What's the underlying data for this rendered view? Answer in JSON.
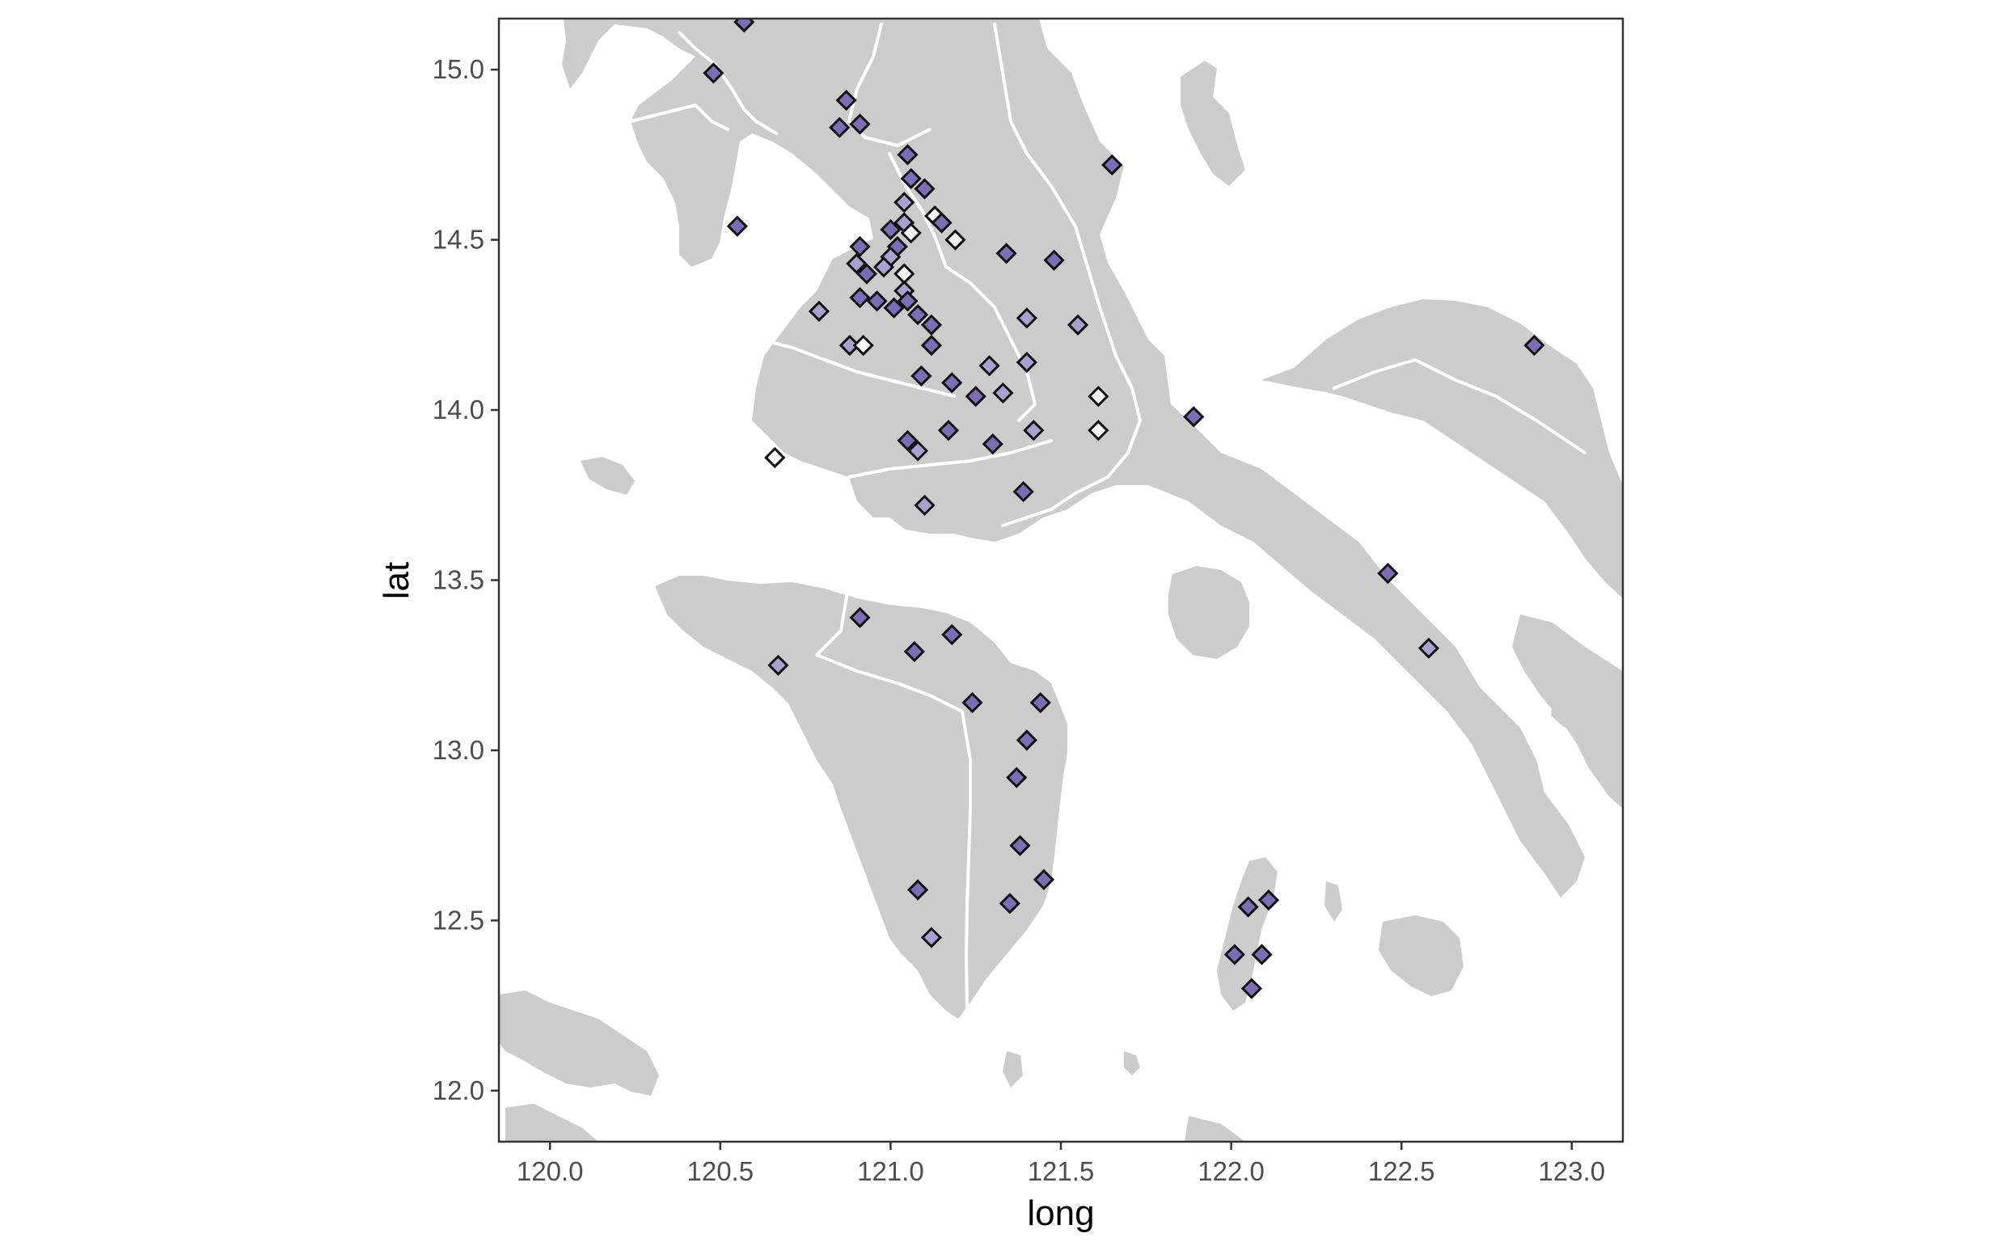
{
  "chart_data": {
    "type": "scatter",
    "subtype": "map",
    "title": "",
    "xlabel": "long",
    "ylabel": "lat",
    "xlim": [
      119.85,
      123.15
    ],
    "ylim": [
      11.85,
      15.15
    ],
    "x_ticks": [
      120.0,
      120.5,
      121.0,
      121.5,
      122.0,
      122.5,
      123.0
    ],
    "x_tick_labels": [
      "120.0",
      "120.5",
      "121.0",
      "121.5",
      "122.0",
      "122.5",
      "123.0"
    ],
    "y_ticks": [
      12.0,
      12.5,
      13.0,
      13.5,
      14.0,
      14.5,
      15.0
    ],
    "y_tick_labels": [
      "12.0",
      "12.5",
      "13.0",
      "13.5",
      "14.0",
      "14.5",
      "15.0"
    ],
    "grid": false,
    "legend": "none",
    "marker": "diamond",
    "colors": {
      "land": "#cccccc",
      "border": "#ffffff",
      "panel_border": "#333333",
      "marker_outline": "#111111",
      "level_high": "#7b6db6",
      "level_mid": "#a9a1d2",
      "level_low": "#f7f7f7"
    },
    "points": [
      {
        "long": 120.57,
        "lat": 15.14,
        "level": "high"
      },
      {
        "long": 120.48,
        "lat": 14.99,
        "level": "high"
      },
      {
        "long": 120.87,
        "lat": 14.91,
        "level": "high"
      },
      {
        "long": 120.85,
        "lat": 14.83,
        "level": "high"
      },
      {
        "long": 120.91,
        "lat": 14.84,
        "level": "high"
      },
      {
        "long": 121.05,
        "lat": 14.75,
        "level": "high"
      },
      {
        "long": 121.65,
        "lat": 14.72,
        "level": "high"
      },
      {
        "long": 121.06,
        "lat": 14.68,
        "level": "high"
      },
      {
        "long": 121.1,
        "lat": 14.65,
        "level": "high"
      },
      {
        "long": 121.04,
        "lat": 14.61,
        "level": "mid"
      },
      {
        "long": 121.13,
        "lat": 14.57,
        "level": "low"
      },
      {
        "long": 121.15,
        "lat": 14.55,
        "level": "high"
      },
      {
        "long": 120.55,
        "lat": 14.54,
        "level": "high"
      },
      {
        "long": 121.0,
        "lat": 14.53,
        "level": "high"
      },
      {
        "long": 121.04,
        "lat": 14.55,
        "level": "mid"
      },
      {
        "long": 121.06,
        "lat": 14.52,
        "level": "low"
      },
      {
        "long": 121.19,
        "lat": 14.5,
        "level": "low"
      },
      {
        "long": 120.91,
        "lat": 14.48,
        "level": "high"
      },
      {
        "long": 121.02,
        "lat": 14.48,
        "level": "high"
      },
      {
        "long": 121.34,
        "lat": 14.46,
        "level": "high"
      },
      {
        "long": 121.48,
        "lat": 14.44,
        "level": "high"
      },
      {
        "long": 120.9,
        "lat": 14.43,
        "level": "mid"
      },
      {
        "long": 121.0,
        "lat": 14.45,
        "level": "mid"
      },
      {
        "long": 120.93,
        "lat": 14.4,
        "level": "high"
      },
      {
        "long": 120.98,
        "lat": 14.42,
        "level": "mid"
      },
      {
        "long": 121.04,
        "lat": 14.4,
        "level": "low"
      },
      {
        "long": 120.91,
        "lat": 14.33,
        "level": "high"
      },
      {
        "long": 120.96,
        "lat": 14.32,
        "level": "high"
      },
      {
        "long": 121.01,
        "lat": 14.3,
        "level": "high"
      },
      {
        "long": 121.04,
        "lat": 14.35,
        "level": "mid"
      },
      {
        "long": 121.05,
        "lat": 14.32,
        "level": "high"
      },
      {
        "long": 120.79,
        "lat": 14.29,
        "level": "mid"
      },
      {
        "long": 121.08,
        "lat": 14.28,
        "level": "high"
      },
      {
        "long": 121.12,
        "lat": 14.25,
        "level": "high"
      },
      {
        "long": 121.4,
        "lat": 14.27,
        "level": "mid"
      },
      {
        "long": 121.55,
        "lat": 14.25,
        "level": "mid"
      },
      {
        "long": 120.88,
        "lat": 14.19,
        "level": "mid"
      },
      {
        "long": 120.92,
        "lat": 14.19,
        "level": "low"
      },
      {
        "long": 121.12,
        "lat": 14.19,
        "level": "high"
      },
      {
        "long": 121.29,
        "lat": 14.13,
        "level": "mid"
      },
      {
        "long": 121.4,
        "lat": 14.14,
        "level": "mid"
      },
      {
        "long": 121.09,
        "lat": 14.1,
        "level": "high"
      },
      {
        "long": 121.18,
        "lat": 14.08,
        "level": "high"
      },
      {
        "long": 121.25,
        "lat": 14.04,
        "level": "high"
      },
      {
        "long": 121.33,
        "lat": 14.05,
        "level": "mid"
      },
      {
        "long": 121.61,
        "lat": 14.04,
        "level": "low"
      },
      {
        "long": 121.89,
        "lat": 13.98,
        "level": "high"
      },
      {
        "long": 121.17,
        "lat": 13.94,
        "level": "high"
      },
      {
        "long": 121.42,
        "lat": 13.94,
        "level": "mid"
      },
      {
        "long": 121.61,
        "lat": 13.94,
        "level": "low"
      },
      {
        "long": 121.05,
        "lat": 13.91,
        "level": "high"
      },
      {
        "long": 121.08,
        "lat": 13.88,
        "level": "mid"
      },
      {
        "long": 121.3,
        "lat": 13.9,
        "level": "high"
      },
      {
        "long": 120.66,
        "lat": 13.86,
        "level": "low"
      },
      {
        "long": 121.39,
        "lat": 13.76,
        "level": "high"
      },
      {
        "long": 121.1,
        "lat": 13.72,
        "level": "mid"
      },
      {
        "long": 122.46,
        "lat": 13.52,
        "level": "high"
      },
      {
        "long": 120.91,
        "lat": 13.39,
        "level": "high"
      },
      {
        "long": 121.18,
        "lat": 13.34,
        "level": "high"
      },
      {
        "long": 121.07,
        "lat": 13.29,
        "level": "high"
      },
      {
        "long": 122.58,
        "lat": 13.3,
        "level": "mid"
      },
      {
        "long": 120.67,
        "lat": 13.25,
        "level": "mid"
      },
      {
        "long": 122.89,
        "lat": 14.19,
        "level": "high"
      },
      {
        "long": 121.24,
        "lat": 13.14,
        "level": "high"
      },
      {
        "long": 121.44,
        "lat": 13.14,
        "level": "high"
      },
      {
        "long": 121.4,
        "lat": 13.03,
        "level": "high"
      },
      {
        "long": 121.37,
        "lat": 12.92,
        "level": "high"
      },
      {
        "long": 121.38,
        "lat": 12.72,
        "level": "high"
      },
      {
        "long": 121.45,
        "lat": 12.62,
        "level": "high"
      },
      {
        "long": 121.08,
        "lat": 12.59,
        "level": "high"
      },
      {
        "long": 121.35,
        "lat": 12.55,
        "level": "high"
      },
      {
        "long": 121.12,
        "lat": 12.45,
        "level": "mid"
      },
      {
        "long": 122.11,
        "lat": 12.56,
        "level": "high"
      },
      {
        "long": 122.05,
        "lat": 12.54,
        "level": "high"
      },
      {
        "long": 122.01,
        "lat": 12.4,
        "level": "high"
      },
      {
        "long": 122.09,
        "lat": 12.4,
        "level": "high"
      },
      {
        "long": 122.06,
        "lat": 12.3,
        "level": "high"
      }
    ]
  }
}
